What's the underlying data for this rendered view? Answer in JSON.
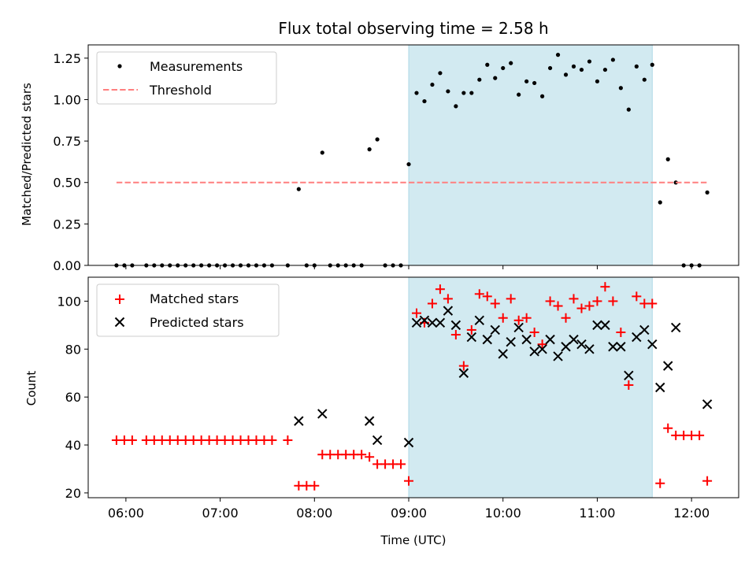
{
  "title": "Flux total observing time = 2.58 h",
  "colors": {
    "measurement": "#000000",
    "threshold": "#ff7f7f",
    "matched": "#ff0000",
    "predicted": "#000000",
    "highlight": "#add8e6"
  },
  "chart_data": [
    {
      "type": "scatter",
      "x_type": "time",
      "xlim": [
        "05:36",
        "12:30"
      ],
      "ylim": [
        0,
        1.33
      ],
      "ylabel": "Matched/Predicted stars",
      "ytick_values": [
        0,
        0.25,
        0.5,
        0.75,
        1.0,
        1.25
      ],
      "ytick_labels": [
        "0.00",
        "0.25",
        "0.50",
        "0.75",
        "1.00",
        "1.25"
      ],
      "highlight_x": [
        "09:00",
        "11:35"
      ],
      "legend": {
        "position": "upper left",
        "entries": [
          "Measurements",
          "Threshold"
        ]
      },
      "series": [
        {
          "name": "Measurements",
          "marker": "dot",
          "points": [
            [
              "05:54",
              0
            ],
            [
              "05:59",
              0
            ],
            [
              "06:04",
              0
            ],
            [
              "06:13",
              0
            ],
            [
              "06:18",
              0
            ],
            [
              "06:23",
              0
            ],
            [
              "06:28",
              0
            ],
            [
              "06:33",
              0
            ],
            [
              "06:38",
              0
            ],
            [
              "06:43",
              0
            ],
            [
              "06:48",
              0
            ],
            [
              "06:53",
              0
            ],
            [
              "06:58",
              0
            ],
            [
              "07:03",
              0
            ],
            [
              "07:08",
              0
            ],
            [
              "07:13",
              0
            ],
            [
              "07:18",
              0
            ],
            [
              "07:23",
              0
            ],
            [
              "07:28",
              0
            ],
            [
              "07:33",
              0
            ],
            [
              "07:43",
              0
            ],
            [
              "07:50",
              0.46
            ],
            [
              "07:55",
              0
            ],
            [
              "08:00",
              0
            ],
            [
              "08:05",
              0.68
            ],
            [
              "08:10",
              0
            ],
            [
              "08:15",
              0
            ],
            [
              "08:20",
              0
            ],
            [
              "08:25",
              0
            ],
            [
              "08:30",
              0
            ],
            [
              "08:35",
              0.7
            ],
            [
              "08:40",
              0.76
            ],
            [
              "08:45",
              0
            ],
            [
              "08:50",
              0
            ],
            [
              "08:55",
              0
            ],
            [
              "09:00",
              0.61
            ],
            [
              "09:05",
              1.04
            ],
            [
              "09:10",
              0.99
            ],
            [
              "09:15",
              1.09
            ],
            [
              "09:20",
              1.16
            ],
            [
              "09:25",
              1.05
            ],
            [
              "09:30",
              0.96
            ],
            [
              "09:35",
              1.04
            ],
            [
              "09:40",
              1.04
            ],
            [
              "09:45",
              1.12
            ],
            [
              "09:50",
              1.21
            ],
            [
              "09:55",
              1.13
            ],
            [
              "10:00",
              1.19
            ],
            [
              "10:05",
              1.22
            ],
            [
              "10:10",
              1.03
            ],
            [
              "10:15",
              1.11
            ],
            [
              "10:20",
              1.1
            ],
            [
              "10:25",
              1.02
            ],
            [
              "10:30",
              1.19
            ],
            [
              "10:35",
              1.27
            ],
            [
              "10:40",
              1.15
            ],
            [
              "10:45",
              1.2
            ],
            [
              "10:50",
              1.18
            ],
            [
              "10:55",
              1.23
            ],
            [
              "11:00",
              1.11
            ],
            [
              "11:05",
              1.18
            ],
            [
              "11:10",
              1.24
            ],
            [
              "11:15",
              1.07
            ],
            [
              "11:20",
              0.94
            ],
            [
              "11:25",
              1.2
            ],
            [
              "11:30",
              1.12
            ],
            [
              "11:35",
              1.21
            ],
            [
              "11:40",
              0.38
            ],
            [
              "11:45",
              0.64
            ],
            [
              "11:50",
              0.5
            ],
            [
              "11:55",
              0
            ],
            [
              "12:00",
              0
            ],
            [
              "12:05",
              0
            ],
            [
              "12:10",
              0.44
            ]
          ]
        },
        {
          "name": "Threshold",
          "marker": "dashed-line",
          "points": [
            [
              "05:54",
              0.5
            ],
            [
              "12:10",
              0.5
            ]
          ]
        }
      ]
    },
    {
      "type": "scatter",
      "x_type": "time",
      "xlim": [
        "05:36",
        "12:30"
      ],
      "ylim": [
        18,
        110
      ],
      "xlabel": "Time (UTC)",
      "ylabel": "Count",
      "xtick_values": [
        "06:00",
        "07:00",
        "08:00",
        "09:00",
        "10:00",
        "11:00",
        "12:00"
      ],
      "ytick_values": [
        20,
        40,
        60,
        80,
        100
      ],
      "ytick_labels": [
        "20",
        "40",
        "60",
        "80",
        "100"
      ],
      "highlight_x": [
        "09:00",
        "11:35"
      ],
      "legend": {
        "position": "upper left",
        "entries": [
          "Matched stars",
          "Predicted stars"
        ]
      },
      "series": [
        {
          "name": "Matched stars",
          "marker": "plus",
          "points": [
            [
              "05:54",
              42
            ],
            [
              "05:59",
              42
            ],
            [
              "06:04",
              42
            ],
            [
              "06:13",
              42
            ],
            [
              "06:18",
              42
            ],
            [
              "06:23",
              42
            ],
            [
              "06:28",
              42
            ],
            [
              "06:33",
              42
            ],
            [
              "06:38",
              42
            ],
            [
              "06:43",
              42
            ],
            [
              "06:48",
              42
            ],
            [
              "06:53",
              42
            ],
            [
              "06:58",
              42
            ],
            [
              "07:03",
              42
            ],
            [
              "07:08",
              42
            ],
            [
              "07:13",
              42
            ],
            [
              "07:18",
              42
            ],
            [
              "07:23",
              42
            ],
            [
              "07:28",
              42
            ],
            [
              "07:33",
              42
            ],
            [
              "07:43",
              42
            ],
            [
              "07:50",
              23
            ],
            [
              "07:55",
              23
            ],
            [
              "08:00",
              23
            ],
            [
              "08:05",
              36
            ],
            [
              "08:10",
              36
            ],
            [
              "08:15",
              36
            ],
            [
              "08:20",
              36
            ],
            [
              "08:25",
              36
            ],
            [
              "08:30",
              36
            ],
            [
              "08:35",
              35
            ],
            [
              "08:40",
              32
            ],
            [
              "08:45",
              32
            ],
            [
              "08:50",
              32
            ],
            [
              "08:55",
              32
            ],
            [
              "09:00",
              25
            ],
            [
              "09:05",
              95
            ],
            [
              "09:10",
              91
            ],
            [
              "09:15",
              99
            ],
            [
              "09:20",
              105
            ],
            [
              "09:25",
              101
            ],
            [
              "09:30",
              86
            ],
            [
              "09:35",
              73
            ],
            [
              "09:40",
              88
            ],
            [
              "09:45",
              103
            ],
            [
              "09:50",
              102
            ],
            [
              "09:55",
              99
            ],
            [
              "10:00",
              93
            ],
            [
              "10:05",
              101
            ],
            [
              "10:10",
              92
            ],
            [
              "10:15",
              93
            ],
            [
              "10:20",
              87
            ],
            [
              "10:25",
              82
            ],
            [
              "10:30",
              100
            ],
            [
              "10:35",
              98
            ],
            [
              "10:40",
              93
            ],
            [
              "10:45",
              101
            ],
            [
              "10:50",
              97
            ],
            [
              "10:55",
              98
            ],
            [
              "11:00",
              100
            ],
            [
              "11:05",
              106
            ],
            [
              "11:10",
              100
            ],
            [
              "11:15",
              87
            ],
            [
              "11:20",
              65
            ],
            [
              "11:25",
              102
            ],
            [
              "11:30",
              99
            ],
            [
              "11:35",
              99
            ],
            [
              "11:40",
              24
            ],
            [
              "11:45",
              47
            ],
            [
              "11:50",
              44
            ],
            [
              "11:55",
              44
            ],
            [
              "12:00",
              44
            ],
            [
              "12:05",
              44
            ],
            [
              "12:10",
              25
            ]
          ]
        },
        {
          "name": "Predicted stars",
          "marker": "x",
          "points": [
            [
              "07:50",
              50
            ],
            [
              "08:05",
              53
            ],
            [
              "08:35",
              50
            ],
            [
              "08:40",
              42
            ],
            [
              "09:00",
              41
            ],
            [
              "09:05",
              91
            ],
            [
              "09:10",
              92
            ],
            [
              "09:15",
              91
            ],
            [
              "09:20",
              91
            ],
            [
              "09:25",
              96
            ],
            [
              "09:30",
              90
            ],
            [
              "09:35",
              70
            ],
            [
              "09:40",
              85
            ],
            [
              "09:45",
              92
            ],
            [
              "09:50",
              84
            ],
            [
              "09:55",
              88
            ],
            [
              "10:00",
              78
            ],
            [
              "10:05",
              83
            ],
            [
              "10:10",
              89
            ],
            [
              "10:15",
              84
            ],
            [
              "10:20",
              79
            ],
            [
              "10:25",
              80
            ],
            [
              "10:30",
              84
            ],
            [
              "10:35",
              77
            ],
            [
              "10:40",
              81
            ],
            [
              "10:45",
              84
            ],
            [
              "10:50",
              82
            ],
            [
              "10:55",
              80
            ],
            [
              "11:00",
              90
            ],
            [
              "11:05",
              90
            ],
            [
              "11:10",
              81
            ],
            [
              "11:15",
              81
            ],
            [
              "11:20",
              69
            ],
            [
              "11:25",
              85
            ],
            [
              "11:30",
              88
            ],
            [
              "11:35",
              82
            ],
            [
              "11:40",
              64
            ],
            [
              "11:45",
              73
            ],
            [
              "11:50",
              89
            ],
            [
              "12:10",
              57
            ]
          ]
        }
      ]
    }
  ]
}
